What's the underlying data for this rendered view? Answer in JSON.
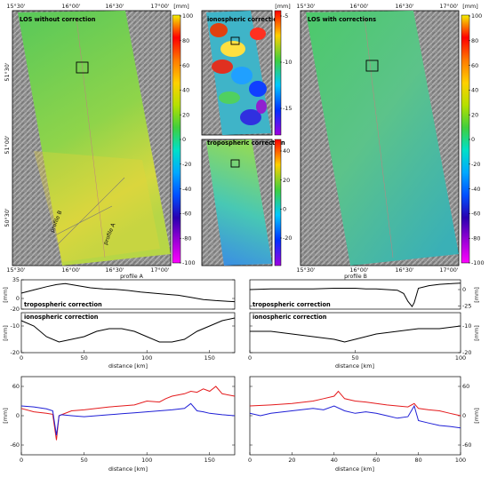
{
  "panels": {
    "left_title": "LOS without correction",
    "iono_title": "ionospheric correction",
    "tropo_title": "tropospheric correction",
    "right_title": "LOS with corrections",
    "profile_a_label": "profile A",
    "profile_b_label": "profile B",
    "map_lon_ticks": [
      "15°30'",
      "16°00'",
      "16°30'",
      "17°00'"
    ],
    "map_lat_ticks": [
      "51°30'",
      "51°00'",
      "50°30'"
    ]
  },
  "colorbars": {
    "unit": "[mm]",
    "main_ticks": [
      "100",
      "80",
      "60",
      "40",
      "20",
      "0",
      "-20",
      "-40",
      "-60",
      "-80",
      "-100"
    ],
    "iono_ticks": [
      "-5",
      "-10",
      "-15"
    ],
    "tropo_ticks": [
      "40",
      "20",
      "0",
      "-20"
    ],
    "main_gradient": [
      "#f5f000",
      "#ff0000",
      "#ff7a00",
      "#ffd000",
      "#b5e000",
      "#3fcf3f",
      "#00e0c8",
      "#00a8ff",
      "#0050ff",
      "#2a00b0",
      "#9b00d6",
      "#ff00ff"
    ],
    "iono_gradient": [
      "#ff0000",
      "#ffd000",
      "#3fcf3f",
      "#00c8ff",
      "#0030ff",
      "#a000e0"
    ],
    "tropo_gradient": [
      "#ff0000",
      "#ffd000",
      "#3fcf3f",
      "#00c8ff",
      "#0030ff",
      "#a000e0"
    ]
  },
  "chart_data": [
    {
      "type": "line",
      "title": "profile A",
      "xlabel": "distance [km]",
      "ylabel": "[mm]",
      "xlim": [
        0,
        170
      ],
      "x_ticks": [
        0,
        50,
        100,
        150
      ],
      "subplots": [
        {
          "label": "tropospheric correction",
          "ylim": [
            -20,
            35
          ],
          "y_ticks": [
            35,
            0,
            -20
          ],
          "series": [
            {
              "color": "#000000",
              "x": [
                0,
                10,
                20,
                28,
                35,
                45,
                55,
                65,
                75,
                85,
                95,
                105,
                115,
                125,
                135,
                145,
                155,
                162,
                170
              ],
              "y": [
                10,
                16,
                22,
                26,
                28,
                24,
                20,
                18,
                17,
                15,
                12,
                10,
                8,
                6,
                2,
                -2,
                -4,
                -5,
                -6
              ]
            }
          ]
        },
        {
          "label": "ionospheric correction",
          "ylim": [
            -20,
            -5
          ],
          "y_ticks": [
            -10,
            -20
          ],
          "series": [
            {
              "color": "#000000",
              "x": [
                0,
                10,
                20,
                30,
                40,
                50,
                60,
                70,
                80,
                90,
                100,
                110,
                120,
                130,
                140,
                150,
                160,
                170
              ],
              "y": [
                -8,
                -10,
                -14,
                -16,
                -15,
                -14,
                -12,
                -11,
                -11,
                -12,
                -14,
                -16,
                -16,
                -15,
                -12,
                -10,
                -8,
                -7
              ]
            }
          ]
        }
      ]
    },
    {
      "type": "line",
      "title": "profile B",
      "xlabel": "distance [km]",
      "ylabel": "[mm]",
      "xlim": [
        0,
        100
      ],
      "x_ticks": [
        0,
        50,
        100
      ],
      "subplots": [
        {
          "label": "tropospheric correction",
          "ylim": [
            -30,
            15
          ],
          "y_ticks": [
            0,
            -25
          ],
          "series": [
            {
              "color": "#000000",
              "x": [
                0,
                10,
                20,
                30,
                40,
                50,
                55,
                60,
                65,
                70,
                73,
                75,
                77,
                78,
                80,
                85,
                90,
                95,
                100
              ],
              "y": [
                0,
                1,
                1,
                1,
                2,
                2,
                1,
                1,
                0,
                -1,
                -6,
                -18,
                -26,
                -20,
                2,
                6,
                8,
                9,
                10
              ]
            }
          ]
        },
        {
          "label": "ionospheric correction",
          "ylim": [
            -20,
            -5
          ],
          "y_ticks": [
            -10,
            -20
          ],
          "series": [
            {
              "color": "#000000",
              "x": [
                0,
                10,
                20,
                30,
                40,
                45,
                50,
                60,
                70,
                80,
                90,
                100
              ],
              "y": [
                -12,
                -12,
                -13,
                -14,
                -15,
                -16,
                -15,
                -13,
                -12,
                -11,
                -11,
                -10
              ]
            }
          ]
        }
      ]
    },
    {
      "type": "line",
      "xlabel": "distance [km]",
      "ylabel": "[mm]",
      "xlim": [
        0,
        170
      ],
      "ylim": [
        -80,
        80
      ],
      "x_ticks": [
        0,
        50,
        100,
        150
      ],
      "y_ticks": [
        60,
        0,
        -60
      ],
      "series": [
        {
          "color": "#e41a1c",
          "x": [
            0,
            10,
            20,
            25,
            28,
            30,
            32,
            40,
            50,
            60,
            70,
            80,
            90,
            100,
            110,
            115,
            120,
            130,
            135,
            140,
            145,
            150,
            155,
            160,
            170
          ],
          "y": [
            15,
            8,
            5,
            3,
            -50,
            0,
            2,
            10,
            12,
            15,
            18,
            20,
            22,
            30,
            28,
            35,
            40,
            45,
            50,
            48,
            55,
            50,
            60,
            45,
            40
          ]
        },
        {
          "color": "#1f1fd6",
          "x": [
            0,
            10,
            20,
            25,
            28,
            30,
            32,
            40,
            50,
            60,
            70,
            80,
            90,
            100,
            110,
            120,
            130,
            135,
            140,
            145,
            150,
            160,
            170
          ],
          "y": [
            20,
            18,
            14,
            10,
            -40,
            0,
            2,
            0,
            -2,
            0,
            2,
            4,
            6,
            8,
            10,
            12,
            15,
            25,
            10,
            8,
            5,
            2,
            0
          ]
        }
      ]
    },
    {
      "type": "line",
      "xlabel": "distance [km]",
      "ylabel": "[mm]",
      "xlim": [
        0,
        100
      ],
      "ylim": [
        -80,
        80
      ],
      "x_ticks": [
        0,
        20,
        40,
        60,
        80,
        100
      ],
      "y_ticks": [
        60,
        0,
        -60
      ],
      "series": [
        {
          "color": "#e41a1c",
          "x": [
            0,
            10,
            20,
            30,
            35,
            40,
            42,
            45,
            50,
            55,
            60,
            65,
            70,
            75,
            78,
            80,
            85,
            90,
            95,
            100
          ],
          "y": [
            20,
            22,
            25,
            30,
            35,
            40,
            50,
            35,
            30,
            28,
            25,
            22,
            20,
            18,
            25,
            15,
            12,
            10,
            5,
            0
          ]
        },
        {
          "color": "#1f1fd6",
          "x": [
            0,
            5,
            10,
            20,
            30,
            35,
            40,
            45,
            50,
            55,
            60,
            65,
            70,
            75,
            78,
            80,
            85,
            90,
            95,
            100
          ],
          "y": [
            5,
            0,
            5,
            10,
            15,
            12,
            20,
            10,
            5,
            8,
            5,
            0,
            -5,
            -2,
            20,
            -10,
            -15,
            -20,
            -22,
            -25
          ]
        }
      ]
    }
  ]
}
